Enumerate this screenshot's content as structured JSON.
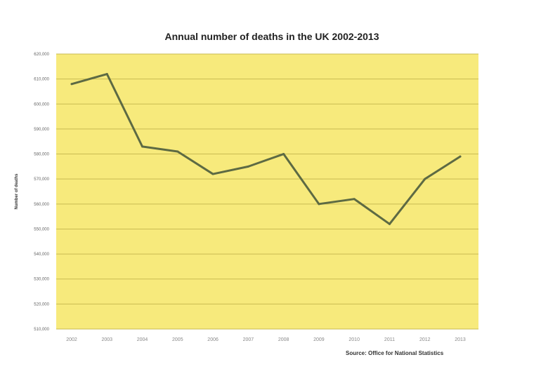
{
  "chart_data": {
    "type": "line",
    "title": "Annual number of deaths in the UK 2002-2013",
    "ylabel": "Number of deaths",
    "source": "Source: Office for National Statistics",
    "categories": [
      "2002",
      "2003",
      "2004",
      "2005",
      "2006",
      "2007",
      "2008",
      "2009",
      "2010",
      "2011",
      "2012",
      "2013"
    ],
    "series": [
      {
        "values": [
          608000,
          612000,
          583000,
          581000,
          572000,
          575000,
          580000,
          560000,
          562000,
          552000,
          570000,
          579000
        ]
      }
    ],
    "y_ticks": [
      "510,000",
      "520,000",
      "530,000",
      "540,000",
      "550,000",
      "560,000",
      "570,000",
      "580,000",
      "590,000",
      "600,000",
      "610,000",
      "620,000"
    ],
    "ylim": [
      510000,
      620000
    ],
    "grid": true,
    "colors": {
      "plot_background": "#f7ea7c",
      "line": "#5d6a43",
      "grid": "#c9bb52"
    }
  }
}
